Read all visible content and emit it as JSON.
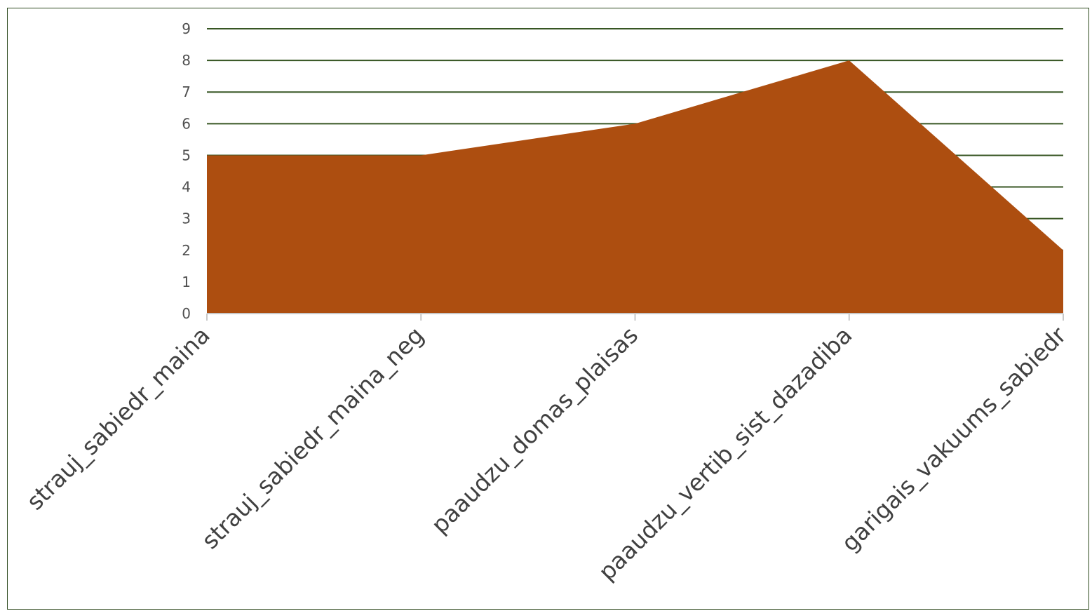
{
  "chart_data": {
    "type": "area",
    "categories": [
      "strauj_sabiedr_maina",
      "strauj_sabiedr_maina_neg",
      "paaudzu_domas_plaisas",
      "paaudzu_vertib_sist_dazadiba",
      "garigais_vakuums_sabiedr"
    ],
    "series": [
      {
        "values": [
          5,
          5,
          6,
          8,
          2
        ]
      }
    ],
    "y_ticks": [
      "0",
      "1",
      "2",
      "3",
      "4",
      "5",
      "6",
      "7",
      "8",
      "9"
    ],
    "ylim": [
      0,
      9
    ],
    "grid": true,
    "legend": "none",
    "colors": {
      "area_fill": "#ad4e10",
      "grid": "#375623",
      "axis": "#c8c8c8",
      "border": "#2e4a1e"
    }
  }
}
